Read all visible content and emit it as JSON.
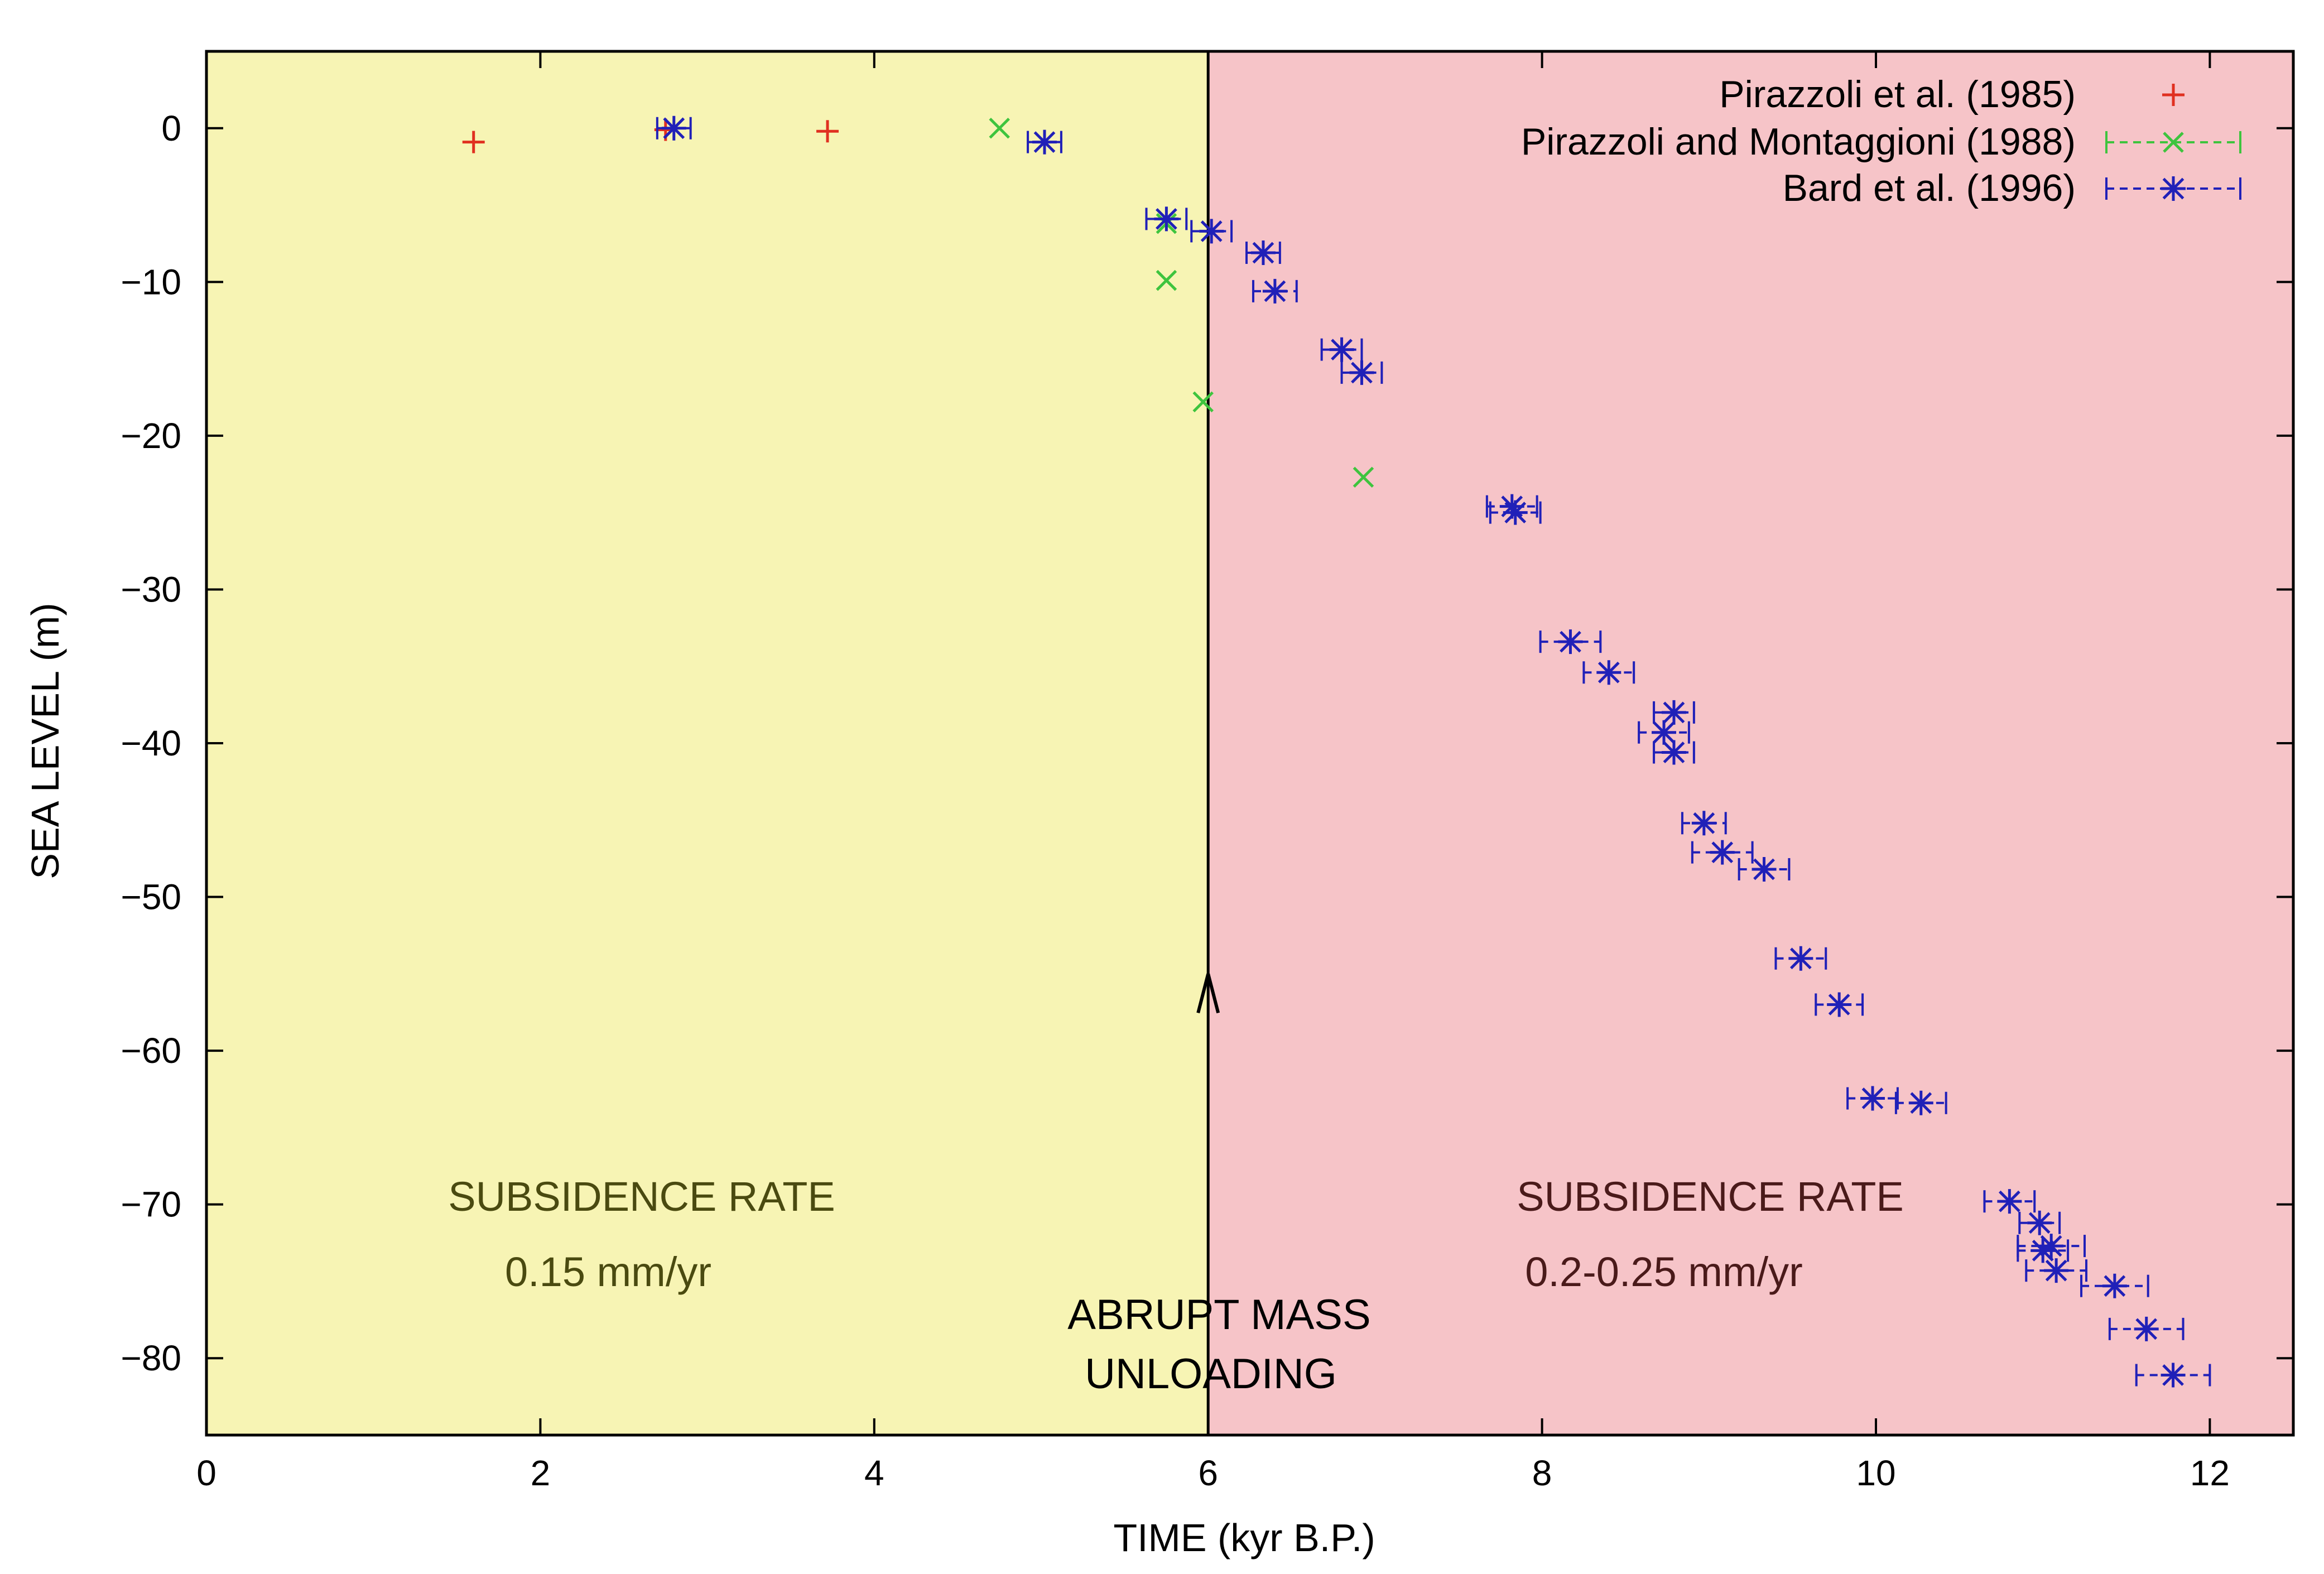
{
  "chart_data": {
    "type": "scatter",
    "xlabel": "TIME (kyr B.P.)",
    "ylabel": "SEA LEVEL (m)",
    "xlim": [
      0,
      12.5
    ],
    "ylim": [
      -85,
      5
    ],
    "x_ticks": [
      0,
      2,
      4,
      6,
      8,
      10,
      12
    ],
    "y_ticks": [
      0,
      -10,
      -20,
      -30,
      -40,
      -50,
      -60,
      -70,
      -80
    ],
    "x_tick_labels": [
      "0",
      "2",
      "4",
      "6",
      "8",
      "10",
      "12"
    ],
    "y_tick_labels": [
      "0",
      "−10",
      "−20",
      "−30",
      "−40",
      "−50",
      "−60",
      "−70",
      "−80"
    ],
    "legend_position": "top-right",
    "regions": [
      {
        "name": "left",
        "x_range": [
          0,
          6
        ],
        "color": "#f7f4b4"
      },
      {
        "name": "right",
        "x_range": [
          6,
          12.5
        ],
        "color": "#f6c4c8"
      }
    ],
    "divider_x": 6,
    "arrow": {
      "x": 6,
      "y_from": -85,
      "y_to": -55
    },
    "annotations": {
      "left_title": "SUBSIDENCE RATE",
      "left_rate": "0.15 mm/yr",
      "right_title": "SUBSIDENCE RATE",
      "right_rate": "0.2-0.25 mm/yr",
      "event_line1": "ABRUPT MASS",
      "event_line2": "UNLOADING"
    },
    "series": [
      {
        "name": "Pirazzoli et al. (1985)",
        "marker": "plus",
        "color": "#e03020",
        "points": [
          {
            "x": 1.6,
            "y": -0.9
          },
          {
            "x": 2.75,
            "y": -0.1
          },
          {
            "x": 3.72,
            "y": -0.2
          }
        ]
      },
      {
        "name": "Pirazzoli and Montaggioni (1988)",
        "marker": "cross",
        "color": "#3ec43e",
        "points": [
          {
            "x": 4.75,
            "y": 0.0
          },
          {
            "x": 5.75,
            "y": -6.2
          },
          {
            "x": 5.75,
            "y": -9.9
          },
          {
            "x": 5.97,
            "y": -17.8
          },
          {
            "x": 6.93,
            "y": -22.7
          }
        ]
      },
      {
        "name": "Bard et al. (1996)",
        "marker": "star",
        "color": "#2020b8",
        "points": [
          {
            "x": 2.8,
            "y": 0.0,
            "xerr": 0.1
          },
          {
            "x": 5.02,
            "y": -0.9,
            "xerr": 0.1
          },
          {
            "x": 5.75,
            "y": -5.9,
            "xerr": 0.12
          },
          {
            "x": 6.02,
            "y": -6.7,
            "xerr": 0.12
          },
          {
            "x": 6.33,
            "y": -8.1,
            "xerr": 0.1
          },
          {
            "x": 6.4,
            "y": -10.6,
            "xerr": 0.13
          },
          {
            "x": 6.8,
            "y": -14.4,
            "xerr": 0.12
          },
          {
            "x": 6.92,
            "y": -15.9,
            "xerr": 0.12
          },
          {
            "x": 7.82,
            "y": -24.6,
            "xerr": 0.15
          },
          {
            "x": 7.84,
            "y": -25.0,
            "xerr": 0.15
          },
          {
            "x": 8.17,
            "y": -33.4,
            "xerr": 0.18
          },
          {
            "x": 8.4,
            "y": -35.4,
            "xerr": 0.15
          },
          {
            "x": 8.79,
            "y": -38.0,
            "xerr": 0.12
          },
          {
            "x": 8.73,
            "y": -39.3,
            "xerr": 0.15
          },
          {
            "x": 8.79,
            "y": -40.6,
            "xerr": 0.12
          },
          {
            "x": 8.97,
            "y": -45.2,
            "xerr": 0.13
          },
          {
            "x": 9.08,
            "y": -47.1,
            "xerr": 0.18
          },
          {
            "x": 9.33,
            "y": -48.2,
            "xerr": 0.15
          },
          {
            "x": 9.55,
            "y": -54.0,
            "xerr": 0.15
          },
          {
            "x": 9.78,
            "y": -57.0,
            "xerr": 0.14
          },
          {
            "x": 9.98,
            "y": -63.1,
            "xerr": 0.15
          },
          {
            "x": 10.27,
            "y": -63.4,
            "xerr": 0.15
          },
          {
            "x": 10.8,
            "y": -69.8,
            "xerr": 0.15
          },
          {
            "x": 10.98,
            "y": -71.2,
            "xerr": 0.12
          },
          {
            "x": 11.05,
            "y": -72.7,
            "xerr": 0.2
          },
          {
            "x": 11.0,
            "y": -73.0,
            "xerr": 0.15
          },
          {
            "x": 11.08,
            "y": -74.3,
            "xerr": 0.18
          },
          {
            "x": 11.43,
            "y": -75.3,
            "xerr": 0.2
          },
          {
            "x": 11.62,
            "y": -78.1,
            "xerr": 0.22
          },
          {
            "x": 11.78,
            "y": -81.1,
            "xerr": 0.22
          }
        ]
      }
    ]
  }
}
